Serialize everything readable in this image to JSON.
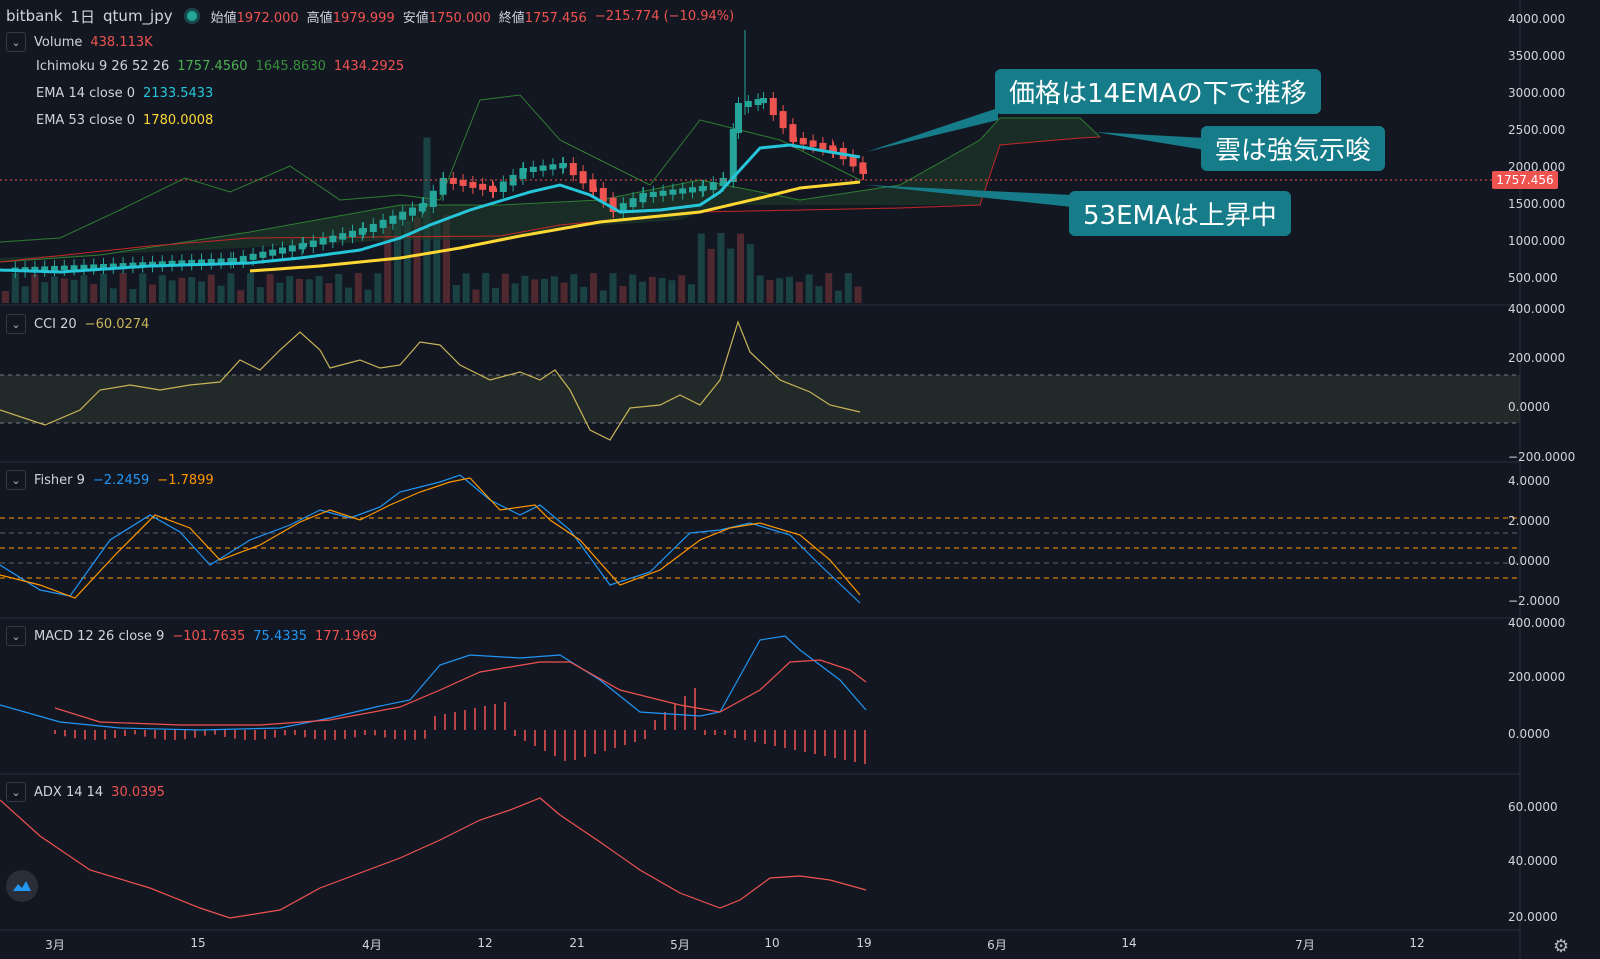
{
  "header": {
    "exchange": "bitbank",
    "interval": "1日",
    "symbol": "qtum_jpy",
    "open_label": "始値",
    "open": "1972.000",
    "high_label": "高値",
    "high": "1979.999",
    "low_label": "安値",
    "low": "1750.000",
    "close_label": "終値",
    "close": "1757.456",
    "change": "−215.774 (−10.94%)"
  },
  "legends": {
    "volume": {
      "name": "Volume",
      "value": "438.113K",
      "color": "#ef5350"
    },
    "ichimoku": {
      "name": "Ichimoku 9 26 52 26",
      "v1": "1757.4560",
      "v2": "1645.8630",
      "v3": "1434.2925",
      "c1": "#4caf50",
      "c2": "#388e3c",
      "c3": "#ef5350"
    },
    "ema14": {
      "name": "EMA 14 close 0",
      "value": "2133.5433",
      "color": "#26c6da"
    },
    "ema53": {
      "name": "EMA 53 close 0",
      "value": "1780.0008",
      "color": "#fdd835"
    },
    "cci": {
      "name": "CCI 20",
      "value": "−60.0274",
      "color": "#c9b458"
    },
    "fisher": {
      "name": "Fisher 9",
      "v1": "−2.2459",
      "v2": "−1.7899",
      "c1": "#2196f3",
      "c2": "#ff9800"
    },
    "macd": {
      "name": "MACD 12 26 close 9",
      "v1": "−101.7635",
      "v2": "75.4335",
      "v3": "177.1969",
      "c1": "#ef5350",
      "c2": "#2196f3",
      "c3": "#ef5350"
    },
    "adx": {
      "name": "ADX 14 14",
      "value": "30.0395",
      "color": "#ef5350"
    }
  },
  "callouts": [
    "価格は14EMAの下で推移",
    "雲は強気示唆",
    "53EMAは上昇中"
  ],
  "price_tag": "1757.456",
  "x_axis": [
    "3月",
    "15",
    "4月",
    "12",
    "21",
    "5月",
    "10",
    "19",
    "6月",
    "14",
    "7月",
    "12"
  ],
  "y_axis": {
    "price": [
      "4000.000",
      "3500.000",
      "3000.000",
      "2500.000",
      "2000.000",
      "1500.000",
      "1000.000",
      "500.000"
    ],
    "cci": [
      "400.0000",
      "200.0000",
      "0.0000",
      "−200.0000"
    ],
    "fisher": [
      "4.0000",
      "2.0000",
      "0.0000",
      "−2.0000"
    ],
    "macd": [
      "400.0000",
      "200.0000",
      "0.0000"
    ],
    "adx": [
      "60.0000",
      "40.0000",
      "20.0000"
    ]
  },
  "colors": {
    "up": "#26a69a",
    "down": "#ef5350",
    "background": "#131722",
    "callout": "#177c8a"
  }
}
